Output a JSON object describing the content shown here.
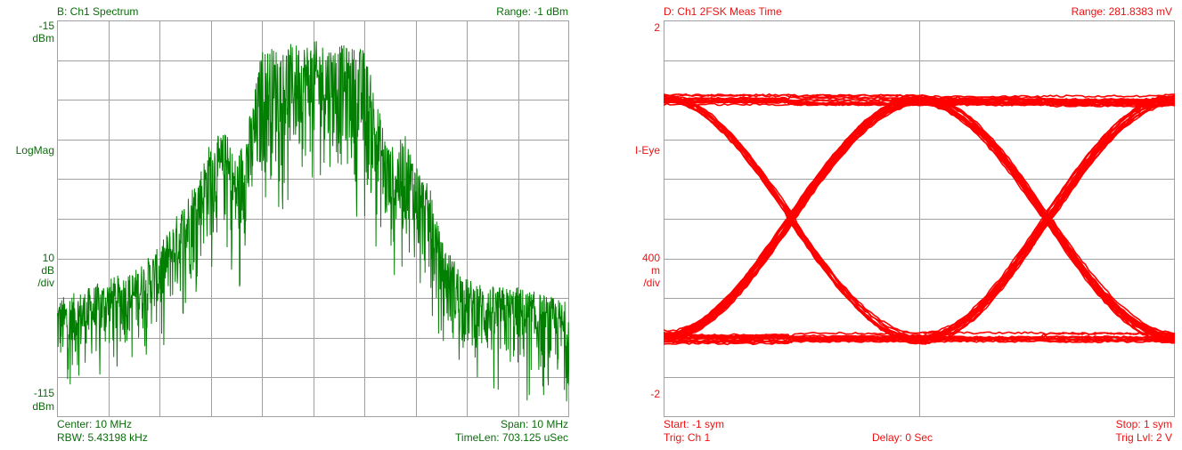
{
  "colors": {
    "spectrum_trace": "#007f00",
    "spectrum_text": "#0b6b0b",
    "eye_trace": "#ff0000",
    "eye_text": "#ee1111",
    "grid": "#a0a0a0"
  },
  "chart_data": [
    {
      "type": "line",
      "panel": "B",
      "title": "B: Ch1 Spectrum",
      "range_label": "Range: -1 dBm",
      "y_top": {
        "value": "-15",
        "unit": "dBm"
      },
      "y_mid": "LogMag",
      "y_scale": {
        "value": "10",
        "unit1": "dB",
        "unit2": "/div"
      },
      "y_bottom": {
        "value": "-115",
        "unit": "dBm"
      },
      "x_info": {
        "center": "Center: 10 MHz",
        "span": "Span: 10 MHz",
        "rbw": "RBW: 5.43198 kHz",
        "timelen": "TimeLen: 703.125 uSec"
      },
      "x_range_mhz": [
        5,
        15
      ],
      "ylim": [
        -115,
        -15
      ],
      "grid": {
        "x_divisions": 10,
        "y_divisions": 10
      },
      "envelope": {
        "x_mhz": [
          5.0,
          5.5,
          6.0,
          6.5,
          7.0,
          7.5,
          7.8,
          8.0,
          8.3,
          8.5,
          8.8,
          9.0,
          9.5,
          10.0,
          10.5,
          11.0,
          11.3,
          11.5,
          11.8,
          12.0,
          12.3,
          12.5,
          13.0,
          13.5,
          14.0,
          14.5,
          15.0
        ],
        "upper_dbm": [
          -85,
          -83,
          -80,
          -78,
          -72,
          -60,
          -52,
          -45,
          -43,
          -50,
          -37,
          -22,
          -21,
          -20,
          -21,
          -22,
          -38,
          -47,
          -44,
          -50,
          -58,
          -70,
          -80,
          -82,
          -82,
          -84,
          -86
        ],
        "lower_dbm": [
          -105,
          -103,
          -100,
          -97,
          -93,
          -85,
          -78,
          -72,
          -70,
          -77,
          -70,
          -58,
          -54,
          -52,
          -54,
          -58,
          -70,
          -75,
          -72,
          -78,
          -85,
          -95,
          -100,
          -103,
          -105,
          -106,
          -108
        ]
      }
    },
    {
      "type": "line",
      "panel": "D",
      "title": "D: Ch1 2FSK Meas Time",
      "range_label": "Range: 281.8383 mV",
      "y_top": "2",
      "y_mid": "I-Eye",
      "y_scale": {
        "value": "400",
        "unit1": "m",
        "unit2": "/div"
      },
      "y_bottom": "-2",
      "x_info": {
        "start": "Start: -1  sym",
        "stop": "Stop: 1  sym",
        "trig": "Trig: Ch 1",
        "delay": "Delay: 0  Sec",
        "triglvl": "Trig Lvl: 2  V"
      },
      "x_range_sym": [
        -1,
        1
      ],
      "ylim": [
        -2,
        2
      ],
      "grid": {
        "x_divisions": 2,
        "y_divisions": 10
      },
      "eye": {
        "high_level": 1.2,
        "low_level": -1.2,
        "crossings_sym": [
          -0.5,
          0.5
        ],
        "trace_count": 60
      }
    }
  ]
}
